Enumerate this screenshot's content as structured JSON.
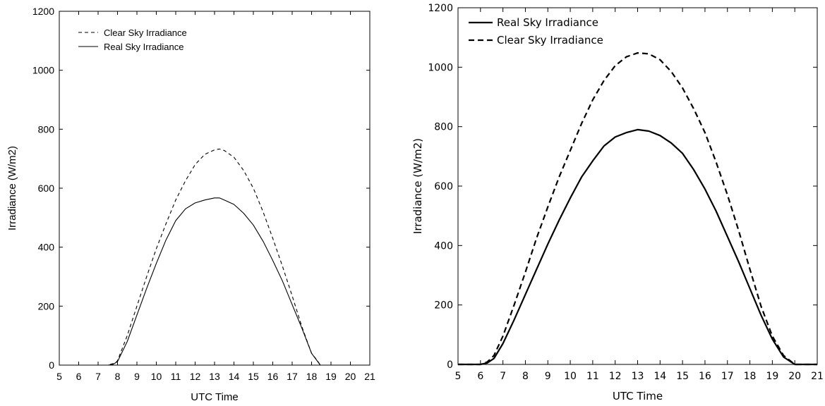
{
  "chart_data": [
    {
      "type": "line",
      "title": "",
      "xlabel": "UTC Time",
      "ylabel": "Irradiance (W/m2)",
      "xlim": [
        5,
        21
      ],
      "ylim": [
        0,
        1200
      ],
      "xticks": [
        "5",
        "6",
        "7",
        "8",
        "9",
        "10",
        "11",
        "12",
        "13",
        "14",
        "15",
        "16",
        "17",
        "18",
        "19",
        "20",
        "21"
      ],
      "yticks": [
        "0",
        "200",
        "400",
        "600",
        "800",
        "1000",
        "1200"
      ],
      "grid": false,
      "legend": "top-left",
      "series": [
        {
          "name": "Clear Sky Irradiance",
          "style": "dashed",
          "color": "#000000",
          "x": [
            5,
            7.5,
            7.9,
            8.0,
            8.5,
            9.0,
            9.5,
            10.0,
            10.5,
            11.0,
            11.5,
            12.0,
            12.5,
            13.0,
            13.25,
            13.5,
            14.0,
            14.5,
            15.0,
            15.5,
            16.0,
            16.5,
            17.0,
            17.5,
            18.0,
            18.3,
            18.45,
            21
          ],
          "y": [
            0,
            0,
            8,
            15,
            100,
            200,
            300,
            395,
            480,
            560,
            625,
            680,
            715,
            730,
            733,
            728,
            705,
            660,
            600,
            520,
            430,
            335,
            235,
            130,
            40,
            15,
            0,
            0
          ]
        },
        {
          "name": "Real Sky Irradiance",
          "style": "solid",
          "color": "#000000",
          "x": [
            5,
            7.5,
            7.75,
            8.0,
            8.5,
            9.0,
            9.5,
            10.0,
            10.5,
            11.0,
            11.5,
            12.0,
            12.5,
            13.0,
            13.25,
            13.5,
            14.0,
            14.5,
            15.0,
            15.5,
            16.0,
            16.5,
            17.0,
            17.5,
            18.0,
            18.45,
            21
          ],
          "y": [
            0,
            0,
            2,
            12,
            80,
            170,
            260,
            345,
            425,
            490,
            530,
            550,
            560,
            567,
            567,
            560,
            545,
            515,
            475,
            420,
            355,
            285,
            205,
            125,
            40,
            0,
            0
          ]
        }
      ]
    },
    {
      "type": "line",
      "title": "",
      "xlabel": "UTC Time",
      "ylabel": "Irradiance (W/m2)",
      "xlim": [
        5,
        21
      ],
      "ylim": [
        0,
        1200
      ],
      "xticks": [
        "5",
        "6",
        "7",
        "8",
        "9",
        "10",
        "11",
        "12",
        "13",
        "14",
        "15",
        "16",
        "17",
        "18",
        "19",
        "20",
        "21"
      ],
      "yticks": [
        "0",
        "200",
        "400",
        "600",
        "800",
        "1000",
        "1200"
      ],
      "grid": false,
      "legend": "top-left",
      "series": [
        {
          "name": "Real Sky Irradiance",
          "style": "solid",
          "color": "#000000",
          "x": [
            5,
            6.0,
            6.3,
            6.6,
            7.0,
            7.5,
            8.0,
            8.5,
            9.0,
            9.5,
            10.0,
            10.5,
            11.0,
            11.5,
            12.0,
            12.5,
            13.0,
            13.5,
            14.0,
            14.5,
            15.0,
            15.5,
            16.0,
            16.5,
            17.0,
            17.5,
            18.0,
            18.5,
            19.0,
            19.5,
            20.0,
            21
          ],
          "y": [
            0,
            0,
            5,
            20,
            70,
            150,
            235,
            320,
            405,
            485,
            560,
            630,
            685,
            735,
            765,
            780,
            790,
            785,
            770,
            745,
            710,
            655,
            590,
            515,
            430,
            345,
            255,
            165,
            85,
            25,
            0,
            0
          ]
        },
        {
          "name": "Clear Sky Irradiance",
          "style": "dashed",
          "color": "#000000",
          "x": [
            5,
            6.0,
            6.3,
            6.6,
            7.0,
            7.5,
            8.0,
            8.5,
            9.0,
            9.5,
            10.0,
            10.5,
            11.0,
            11.5,
            12.0,
            12.5,
            13.0,
            13.5,
            14.0,
            14.5,
            15.0,
            15.5,
            16.0,
            16.5,
            17.0,
            17.5,
            18.0,
            18.5,
            19.0,
            19.5,
            20.0,
            21
          ],
          "y": [
            0,
            0,
            8,
            30,
            95,
            200,
            310,
            425,
            530,
            630,
            720,
            810,
            890,
            955,
            1005,
            1035,
            1048,
            1045,
            1025,
            985,
            930,
            860,
            780,
            680,
            570,
            450,
            320,
            195,
            95,
            30,
            0,
            0
          ]
        }
      ]
    }
  ]
}
